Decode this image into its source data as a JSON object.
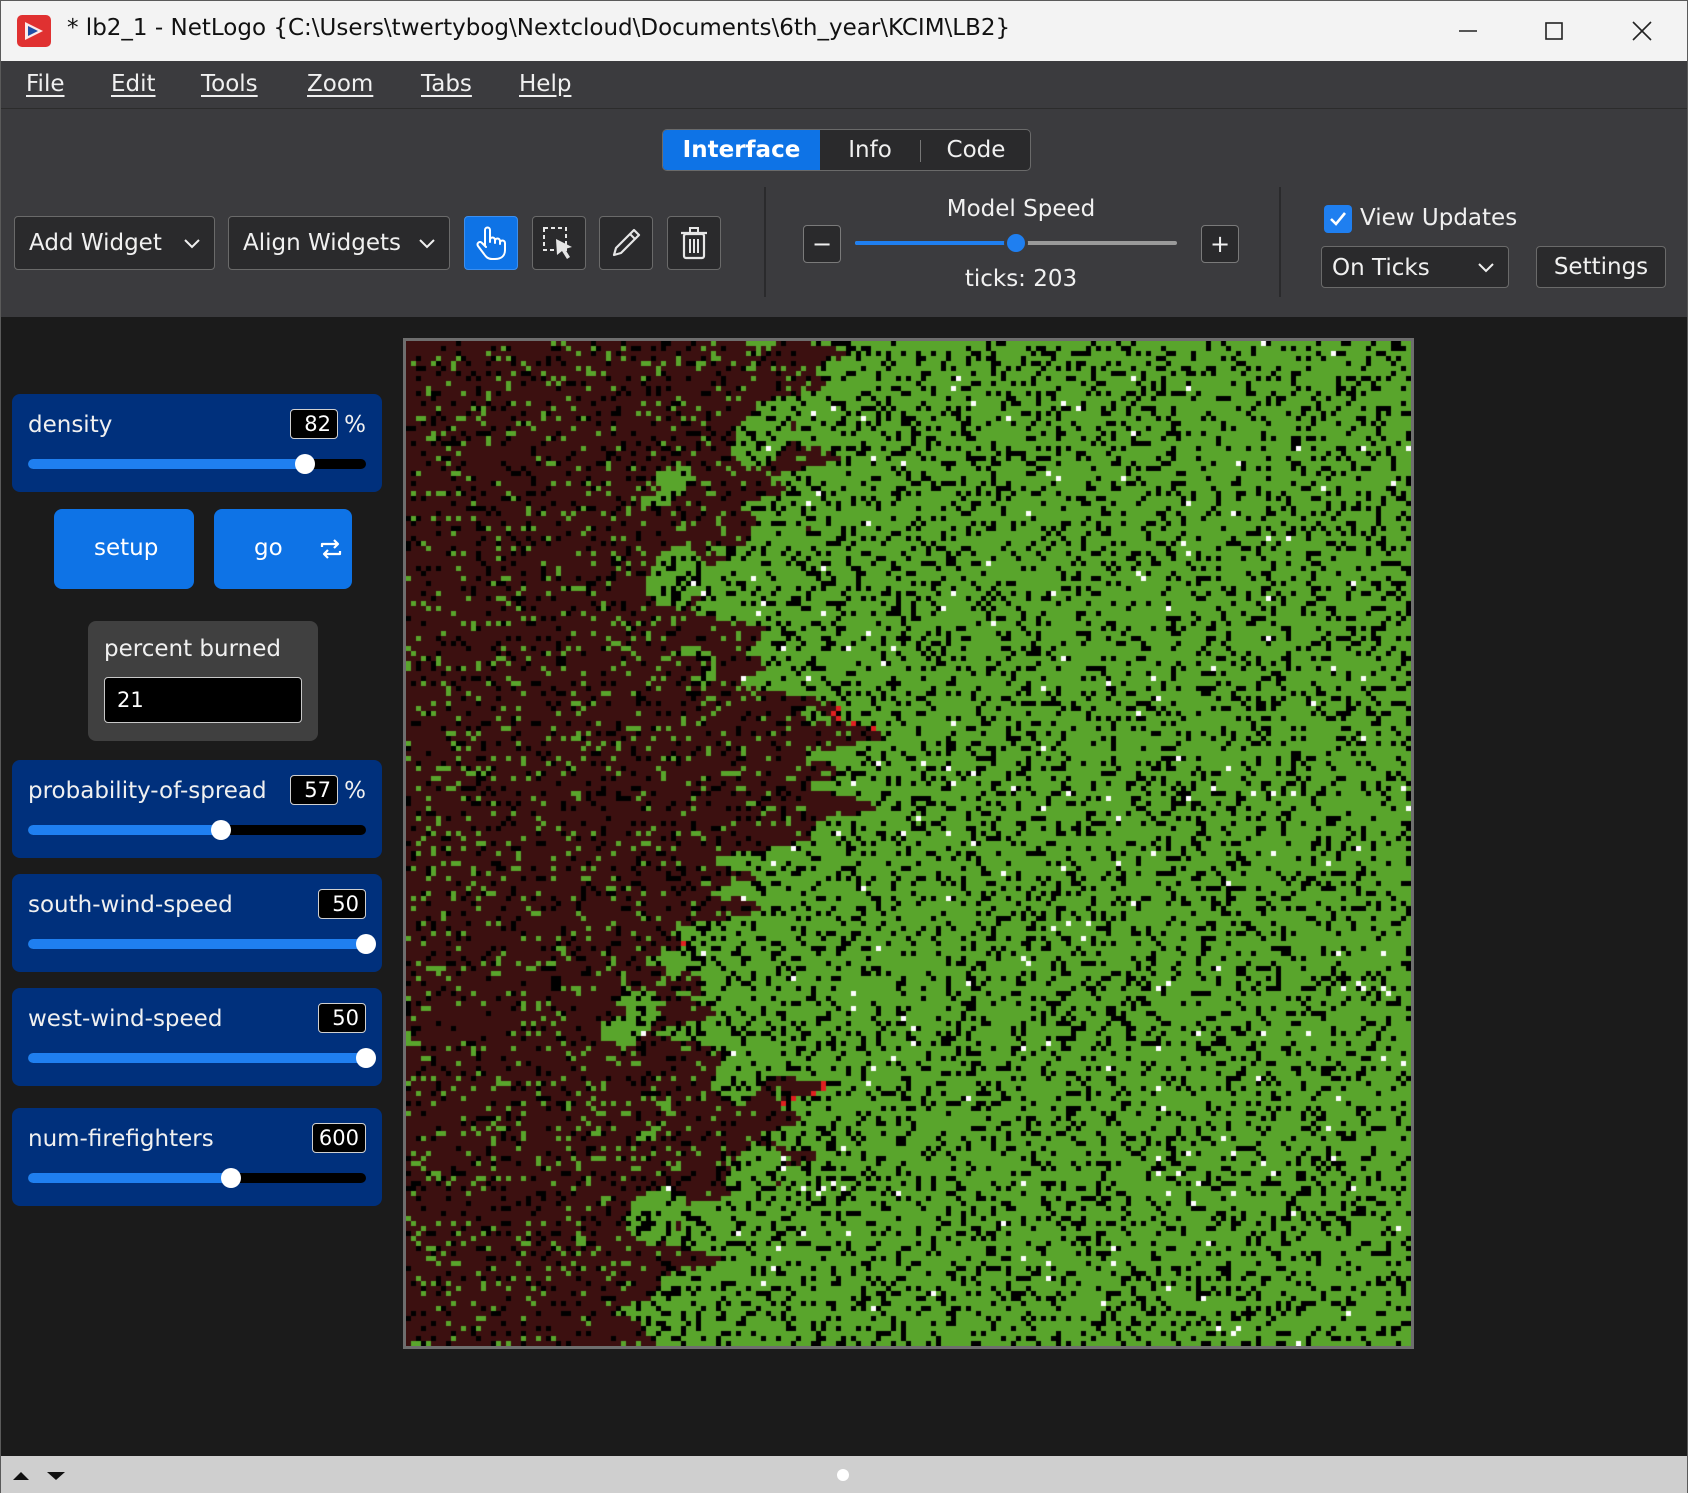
{
  "titlebar": {
    "title": "* lb2_1 - NetLogo {C:\\Users\\twertybog\\Nextcloud\\Documents\\6th_year\\KCIM\\LB2}",
    "icon": "netlogo-app-icon"
  },
  "menu": [
    "File",
    "Edit",
    "Tools",
    "Zoom",
    "Tabs",
    "Help"
  ],
  "tabs": {
    "interface": "Interface",
    "info": "Info",
    "code": "Code",
    "active": "Interface"
  },
  "toolbar": {
    "add_widget": "Add Widget",
    "align_widgets": "Align Widgets",
    "tools": [
      "interact-hand-icon",
      "select-icon",
      "edit-pencil-icon",
      "delete-trash-icon"
    ],
    "model_speed_label": "Model Speed",
    "model_speed_fraction": 0.5,
    "minus": "−",
    "plus": "+",
    "ticks": "ticks: 203",
    "view_updates_label": "View Updates",
    "view_updates_checked": true,
    "update_mode": "On Ticks",
    "settings": "Settings"
  },
  "widgets": {
    "density": {
      "label": "density",
      "value": "82",
      "unit": "%",
      "fraction": 0.82
    },
    "setup": {
      "label": "setup"
    },
    "go": {
      "label": "go",
      "forever": true
    },
    "percent_burned": {
      "label": "percent burned",
      "value": "21"
    },
    "probability_of_spread": {
      "label": "probability-of-spread",
      "value": "57",
      "unit": "%",
      "fraction": 0.57
    },
    "south_wind_speed": {
      "label": "south-wind-speed",
      "value": "50",
      "unit": "",
      "fraction": 1.0
    },
    "west_wind_speed": {
      "label": "west-wind-speed",
      "value": "50",
      "unit": "",
      "fraction": 1.0
    },
    "num_firefighters": {
      "label": "num-firefighters",
      "value": "600",
      "unit": "",
      "fraction": 0.6
    }
  },
  "world": {
    "colors": {
      "tree": "#59a52c",
      "burned": "#3c1010",
      "empty": "#000000",
      "fire": "#e02020",
      "firefighter": "#ffffff"
    }
  },
  "colors": {
    "accent": "#0e73e6",
    "widget_bg": "#00307c",
    "chrome": "#3b3b3e",
    "workspace": "#1b1b1b"
  }
}
